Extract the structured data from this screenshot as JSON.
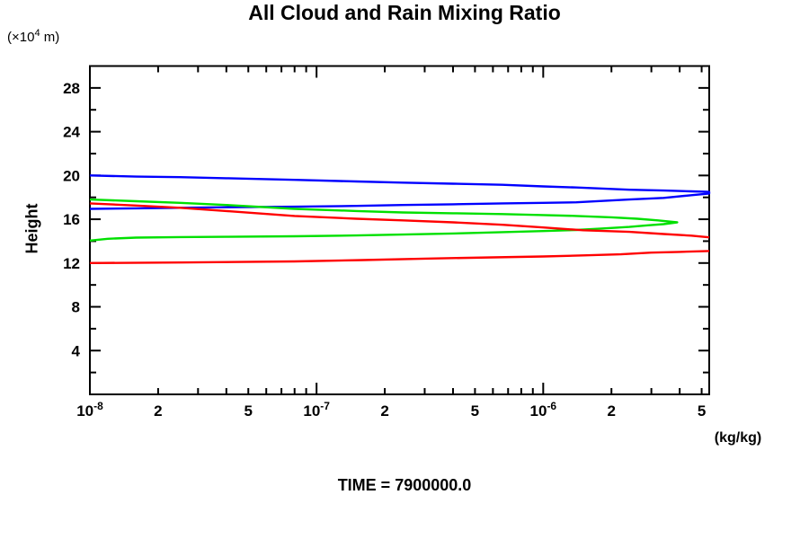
{
  "labels": {
    "y_unit_prefix": "(×10",
    "y_unit_exp": "4",
    "y_unit_suffix": " m)"
  },
  "chart_data": {
    "type": "line",
    "title": "All Cloud and Rain Mixing Ratio",
    "xlabel": "(kg/kg)",
    "ylabel": "Height",
    "y_unit": "(×10⁴ m)",
    "annotation": "TIME = 7900000.0",
    "x_scale": "log",
    "x_range": [
      1e-08,
      5.4e-06
    ],
    "y_range": [
      0,
      30
    ],
    "grid": false,
    "legend": "none",
    "axis_color": "#000000",
    "x_ticks_labeled": [
      {
        "v": 1e-08,
        "base": "10",
        "exp": "-8"
      },
      {
        "v": 2e-08,
        "text": "2"
      },
      {
        "v": 5e-08,
        "text": "5"
      },
      {
        "v": 1e-07,
        "base": "10",
        "exp": "-7"
      },
      {
        "v": 2e-07,
        "text": "2"
      },
      {
        "v": 5e-07,
        "text": "5"
      },
      {
        "v": 1e-06,
        "base": "10",
        "exp": "-6"
      },
      {
        "v": 2e-06,
        "text": "2"
      },
      {
        "v": 5e-06,
        "text": "5"
      }
    ],
    "x_ticks_minor": [
      3e-08,
      4e-08,
      6e-08,
      7e-08,
      8e-08,
      9e-08,
      3e-07,
      4e-07,
      6e-07,
      7e-07,
      8e-07,
      9e-07,
      3e-06,
      4e-06
    ],
    "y_ticks_labeled": [
      4,
      8,
      12,
      16,
      20,
      24,
      28
    ],
    "y_ticks_minor": [
      2,
      6,
      10,
      14,
      18,
      22,
      26
    ],
    "series": [
      {
        "name": "blue-mixing-ratio-loop",
        "color": "#0000ff",
        "points": [
          [
            1e-08,
            20.0
          ],
          [
            1.6e-08,
            19.9
          ],
          [
            2.5e-08,
            19.85
          ],
          [
            4e-08,
            19.75
          ],
          [
            8e-08,
            19.6
          ],
          [
            1.5e-07,
            19.45
          ],
          [
            2.4e-07,
            19.35
          ],
          [
            4e-07,
            19.25
          ],
          [
            6.6e-07,
            19.15
          ],
          [
            1e-06,
            19.0
          ],
          [
            1.4e-06,
            18.9
          ],
          [
            2.4e-06,
            18.7
          ],
          [
            3.4e-06,
            18.62
          ],
          [
            4.5e-06,
            18.55
          ],
          [
            5.4e-06,
            18.5
          ],
          [
            5.4e-06,
            18.35
          ],
          [
            4.5e-06,
            18.2
          ],
          [
            3.4e-06,
            17.95
          ],
          [
            2.4e-06,
            17.8
          ],
          [
            1.4e-06,
            17.55
          ],
          [
            1e-06,
            17.5
          ],
          [
            6.6e-07,
            17.45
          ],
          [
            4e-07,
            17.37
          ],
          [
            2.4e-07,
            17.3
          ],
          [
            1.5e-07,
            17.22
          ],
          [
            8e-08,
            17.15
          ],
          [
            4e-08,
            17.1
          ],
          [
            2.5e-08,
            17.05
          ],
          [
            1.6e-08,
            17.0
          ],
          [
            1e-08,
            16.95
          ]
        ]
      },
      {
        "name": "green-mixing-ratio-loop",
        "color": "#00e000",
        "points": [
          [
            1e-08,
            17.8
          ],
          [
            1.6e-08,
            17.65
          ],
          [
            2.5e-08,
            17.5
          ],
          [
            4e-08,
            17.3
          ],
          [
            8e-08,
            16.95
          ],
          [
            1.5e-07,
            16.75
          ],
          [
            2.4e-07,
            16.62
          ],
          [
            4e-07,
            16.55
          ],
          [
            6.6e-07,
            16.47
          ],
          [
            1e-06,
            16.38
          ],
          [
            1.4e-06,
            16.3
          ],
          [
            2e-06,
            16.18
          ],
          [
            2.6e-06,
            16.05
          ],
          [
            3.2e-06,
            15.9
          ],
          [
            3.9e-06,
            15.72
          ],
          [
            3.4e-06,
            15.55
          ],
          [
            2.9e-06,
            15.45
          ],
          [
            2.4e-06,
            15.3
          ],
          [
            1.8e-06,
            15.15
          ],
          [
            1.4e-06,
            15.02
          ],
          [
            1e-06,
            14.92
          ],
          [
            6.6e-07,
            14.82
          ],
          [
            4e-07,
            14.7
          ],
          [
            2.4e-07,
            14.6
          ],
          [
            1.5e-07,
            14.52
          ],
          [
            8e-08,
            14.45
          ],
          [
            4e-08,
            14.4
          ],
          [
            2.5e-08,
            14.37
          ],
          [
            1.6e-08,
            14.32
          ],
          [
            1.2e-08,
            14.22
          ],
          [
            1e-08,
            14.05
          ]
        ]
      },
      {
        "name": "red-mixing-ratio-upper",
        "color": "#ff0000",
        "points": [
          [
            1e-08,
            17.45
          ],
          [
            1.6e-08,
            17.25
          ],
          [
            2.5e-08,
            17.05
          ],
          [
            4e-08,
            16.75
          ],
          [
            8e-08,
            16.3
          ],
          [
            1.5e-07,
            16.05
          ],
          [
            2.4e-07,
            15.9
          ],
          [
            4e-07,
            15.72
          ],
          [
            6.6e-07,
            15.5
          ],
          [
            1e-06,
            15.25
          ],
          [
            1.5e-06,
            15.0
          ],
          [
            2.4e-06,
            14.85
          ],
          [
            3.4e-06,
            14.65
          ],
          [
            4.5e-06,
            14.5
          ],
          [
            5.4e-06,
            14.35
          ]
        ]
      },
      {
        "name": "red-mixing-ratio-lower",
        "color": "#ff0000",
        "points": [
          [
            1e-08,
            12.0
          ],
          [
            2.5e-08,
            12.05
          ],
          [
            8e-08,
            12.15
          ],
          [
            1.6e-07,
            12.27
          ],
          [
            3e-07,
            12.4
          ],
          [
            6e-07,
            12.52
          ],
          [
            1e-06,
            12.6
          ],
          [
            1.5e-06,
            12.7
          ],
          [
            2.2e-06,
            12.8
          ],
          [
            3e-06,
            12.95
          ],
          [
            4e-06,
            13.02
          ],
          [
            5.4e-06,
            13.1
          ]
        ]
      }
    ]
  }
}
